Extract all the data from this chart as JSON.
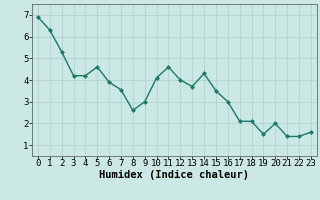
{
  "x": [
    0,
    1,
    2,
    3,
    4,
    5,
    6,
    7,
    8,
    9,
    10,
    11,
    12,
    13,
    14,
    15,
    16,
    17,
    18,
    19,
    20,
    21,
    22,
    23
  ],
  "y": [
    6.9,
    6.3,
    5.3,
    4.2,
    4.2,
    4.6,
    3.9,
    3.55,
    2.6,
    3.0,
    4.1,
    4.6,
    4.0,
    3.7,
    4.3,
    3.5,
    3.0,
    2.1,
    2.1,
    1.5,
    2.0,
    1.4,
    1.4,
    1.6
  ],
  "line_color": "#1a7a6a",
  "marker": "D",
  "marker_size": 2.0,
  "bg_color": "#cce8e4",
  "grid_color": "#b0d4d0",
  "xlabel": "Humidex (Indice chaleur)",
  "ylim": [
    0.5,
    7.5
  ],
  "xlim": [
    -0.5,
    23.5
  ],
  "yticks": [
    1,
    2,
    3,
    4,
    5,
    6,
    7
  ],
  "xticks": [
    0,
    1,
    2,
    3,
    4,
    5,
    6,
    7,
    8,
    9,
    10,
    11,
    12,
    13,
    14,
    15,
    16,
    17,
    18,
    19,
    20,
    21,
    22,
    23
  ],
  "xlabel_fontsize": 7.5,
  "tick_fontsize": 6.5,
  "linewidth": 1.0
}
